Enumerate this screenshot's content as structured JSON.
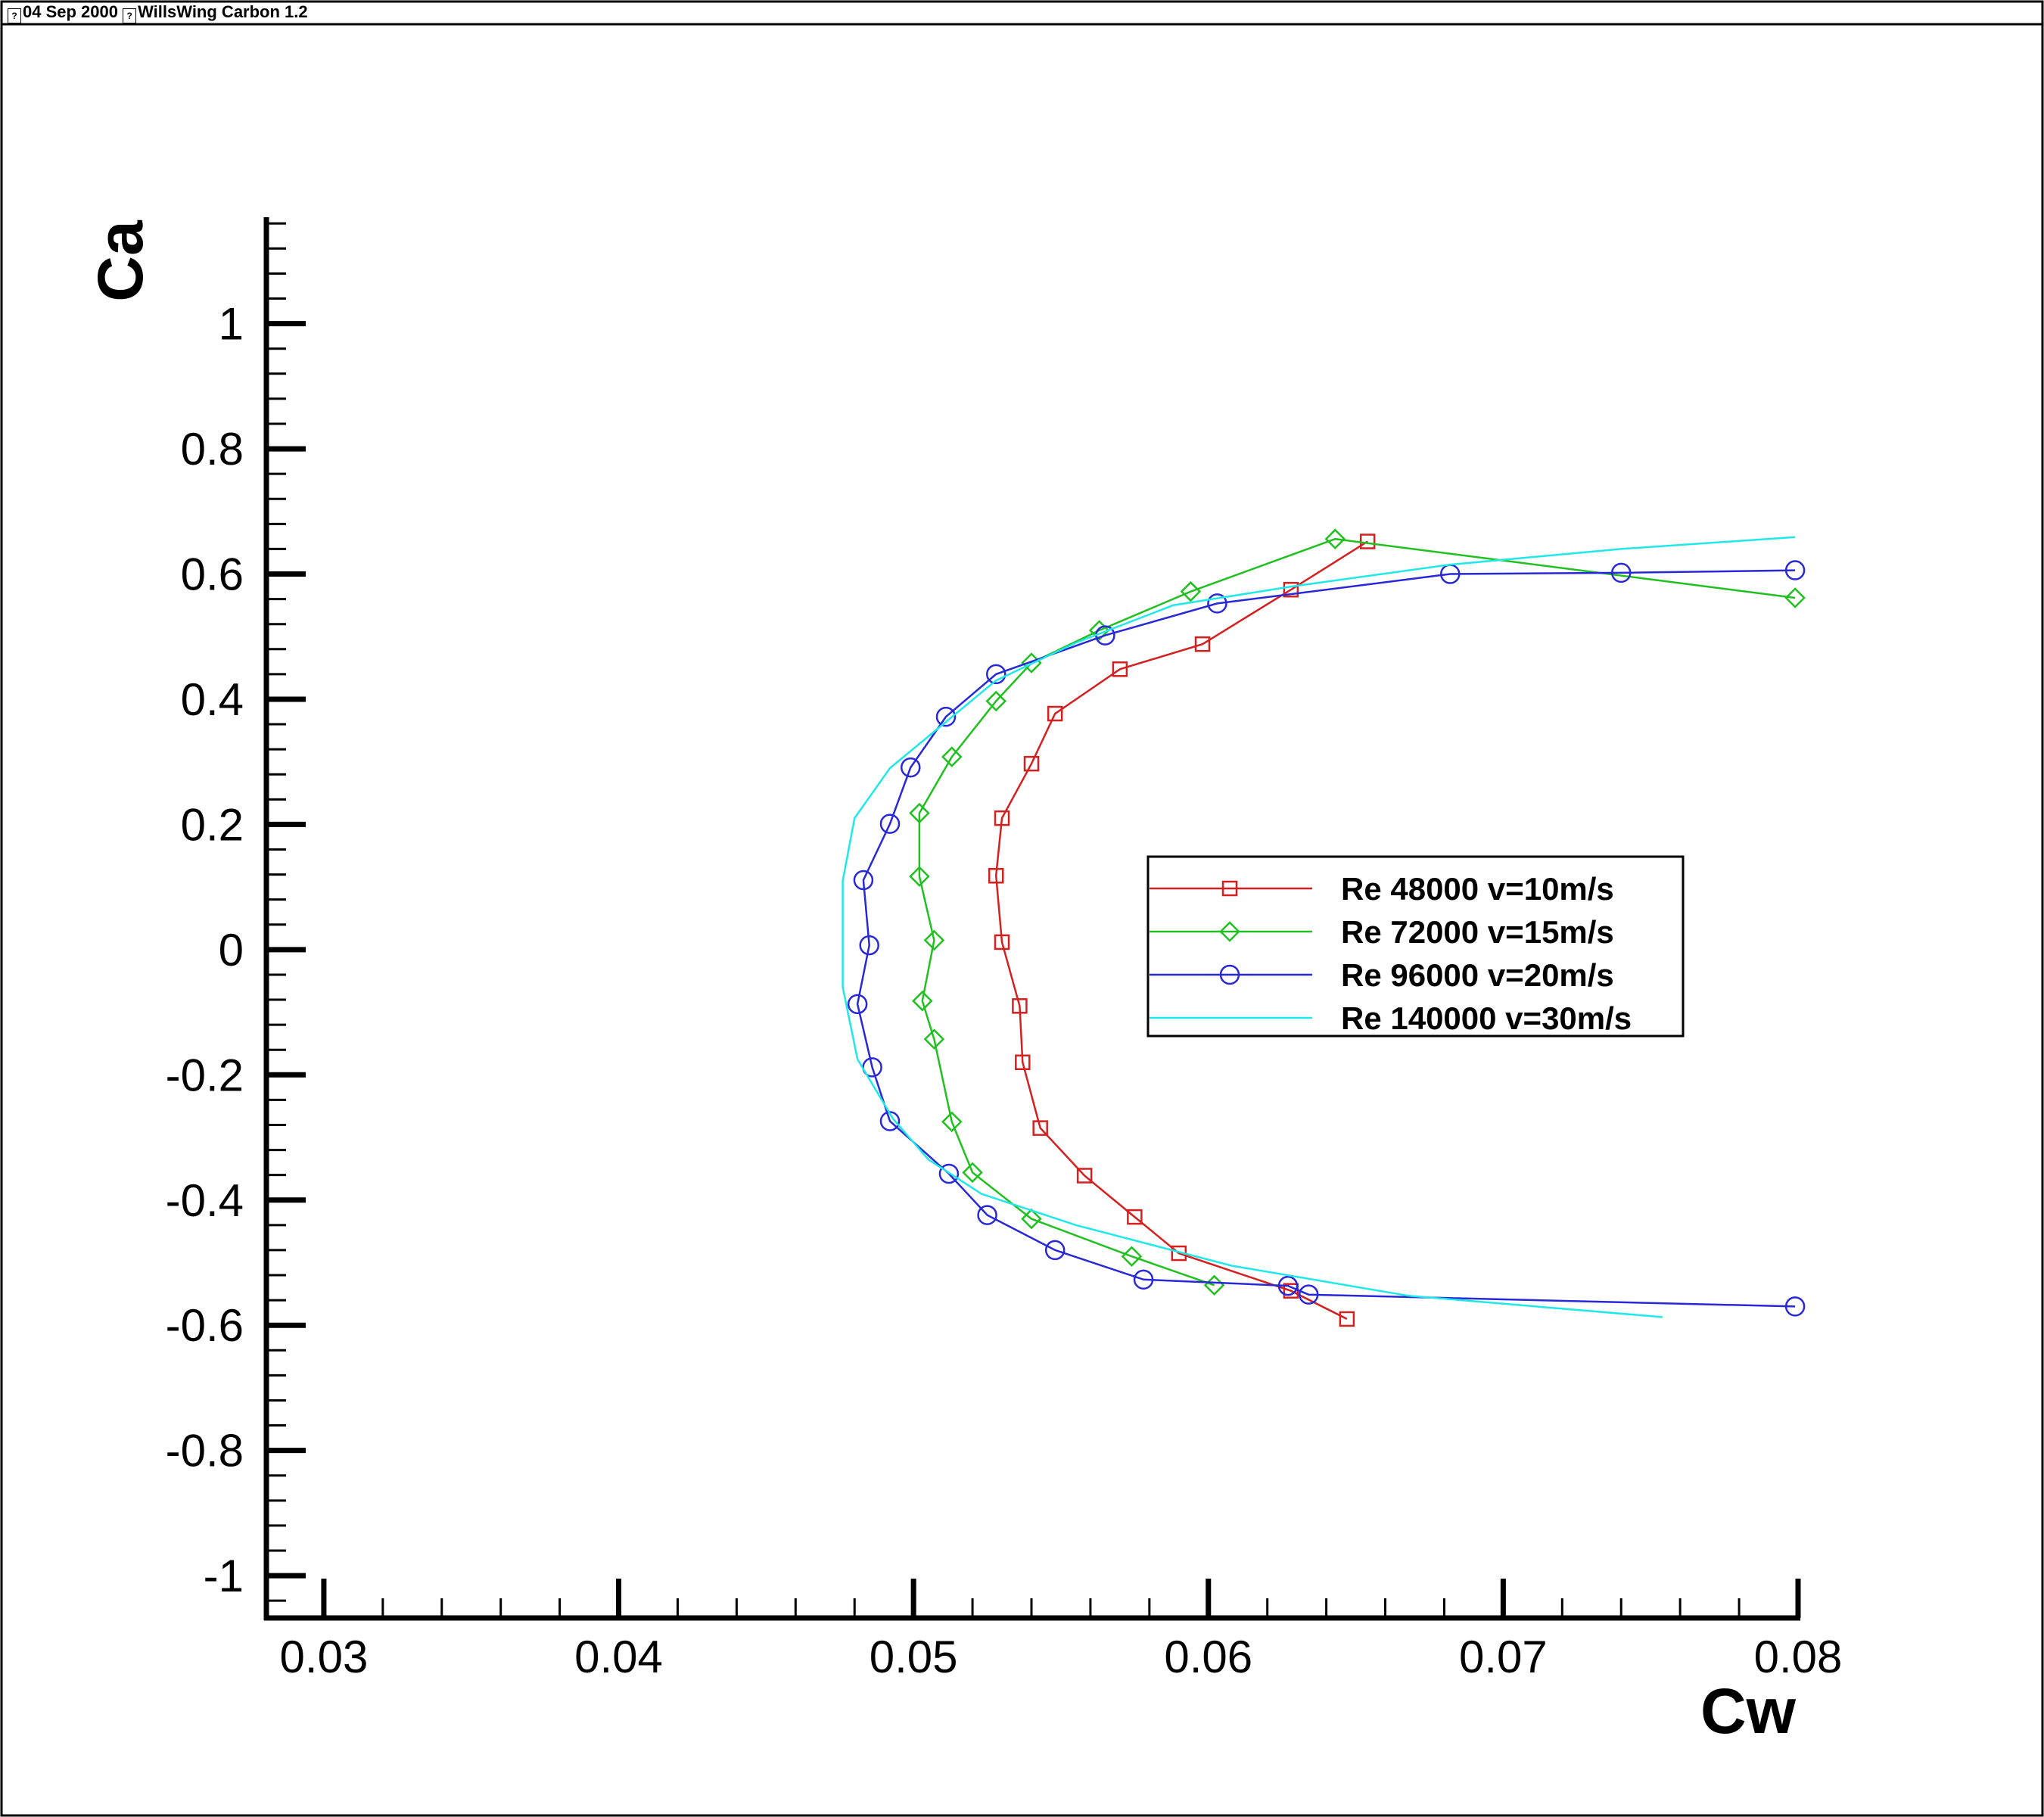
{
  "header": {
    "date": "04 Sep 2000",
    "title": "WillsWing Carbon 1.2"
  },
  "chart_data": {
    "type": "line",
    "xlabel": "Cw",
    "ylabel": "Ca",
    "xlim": [
      0.028,
      0.08
    ],
    "ylim": [
      -1.07,
      1.17
    ],
    "x_ticks": [
      0.03,
      0.04,
      0.05,
      0.06,
      0.07,
      0.08
    ],
    "x_tick_labels": [
      "0.03",
      "0.04",
      "0.05",
      "0.06",
      "0.07",
      "0.08"
    ],
    "y_ticks": [
      -1,
      -0.8,
      -0.6,
      -0.4,
      -0.2,
      0,
      0.2,
      0.4,
      0.6,
      0.8,
      1
    ],
    "y_tick_labels": [
      "-1",
      "-0.8",
      "-0.6",
      "-0.4",
      "-0.2",
      "0",
      "0.2",
      "0.4",
      "0.6",
      "0.8",
      "1"
    ],
    "legend_position": "center-right",
    "grid": false,
    "series": [
      {
        "name": "Re 48000 v=10m/s",
        "color": "#d42020",
        "marker": "square",
        "points": [
          [
            0.0647,
            -0.59
          ],
          [
            0.0628,
            -0.545
          ],
          [
            0.059,
            -0.485
          ],
          [
            0.0575,
            -0.427
          ],
          [
            0.0558,
            -0.361
          ],
          [
            0.0543,
            -0.285
          ],
          [
            0.0537,
            -0.18
          ],
          [
            0.0536,
            -0.09
          ],
          [
            0.053,
            0.012
          ],
          [
            0.0528,
            0.118
          ],
          [
            0.053,
            0.21
          ],
          [
            0.054,
            0.297
          ],
          [
            0.0548,
            0.377
          ],
          [
            0.057,
            0.448
          ],
          [
            0.0598,
            0.488
          ],
          [
            0.0628,
            0.575
          ],
          [
            0.0654,
            0.652
          ]
        ]
      },
      {
        "name": "Re 72000 v=15m/s",
        "color": "#20c020",
        "marker": "diamond",
        "points": [
          [
            0.0602,
            -0.536
          ],
          [
            0.0574,
            -0.49
          ],
          [
            0.054,
            -0.43
          ],
          [
            0.052,
            -0.356
          ],
          [
            0.0513,
            -0.275
          ],
          [
            0.0507,
            -0.143
          ],
          [
            0.0503,
            -0.082
          ],
          [
            0.0507,
            0.015
          ],
          [
            0.0502,
            0.117
          ],
          [
            0.0502,
            0.218
          ],
          [
            0.0513,
            0.308
          ],
          [
            0.0528,
            0.397
          ],
          [
            0.054,
            0.458
          ],
          [
            0.0563,
            0.51
          ],
          [
            0.0594,
            0.572
          ],
          [
            0.0643,
            0.656
          ],
          [
            0.0799,
            0.562
          ]
        ]
      },
      {
        "name": "Re 96000 v=20m/s",
        "color": "#2828d8",
        "marker": "circle",
        "points": [
          [
            0.0799,
            -0.57
          ],
          [
            0.0634,
            -0.551
          ],
          [
            0.0627,
            -0.537
          ],
          [
            0.0578,
            -0.527
          ],
          [
            0.0548,
            -0.48
          ],
          [
            0.0525,
            -0.424
          ],
          [
            0.0512,
            -0.358
          ],
          [
            0.0492,
            -0.274
          ],
          [
            0.0486,
            -0.188
          ],
          [
            0.0481,
            -0.087
          ],
          [
            0.0485,
            0.007
          ],
          [
            0.0483,
            0.111
          ],
          [
            0.0492,
            0.201
          ],
          [
            0.0499,
            0.291
          ],
          [
            0.0511,
            0.372
          ],
          [
            0.0528,
            0.44
          ],
          [
            0.0565,
            0.502
          ],
          [
            0.0603,
            0.553
          ],
          [
            0.0682,
            0.6
          ],
          [
            0.074,
            0.602
          ],
          [
            0.0799,
            0.606
          ]
        ]
      },
      {
        "name": "Re 140000 v=30m/s",
        "color": "#20e8e8",
        "marker": "none",
        "points": [
          [
            0.0754,
            -0.587
          ],
          [
            0.0668,
            -0.553
          ],
          [
            0.0608,
            -0.505
          ],
          [
            0.0555,
            -0.44
          ],
          [
            0.0523,
            -0.39
          ],
          [
            0.0505,
            -0.335
          ],
          [
            0.0493,
            -0.27
          ],
          [
            0.0481,
            -0.175
          ],
          [
            0.0476,
            -0.06
          ],
          [
            0.0476,
            0.11
          ],
          [
            0.048,
            0.21
          ],
          [
            0.0492,
            0.29
          ],
          [
            0.051,
            0.36
          ],
          [
            0.0528,
            0.43
          ],
          [
            0.0555,
            0.49
          ],
          [
            0.0588,
            0.55
          ],
          [
            0.0628,
            0.58
          ],
          [
            0.0682,
            0.615
          ],
          [
            0.074,
            0.64
          ],
          [
            0.0799,
            0.659
          ]
        ]
      }
    ]
  }
}
